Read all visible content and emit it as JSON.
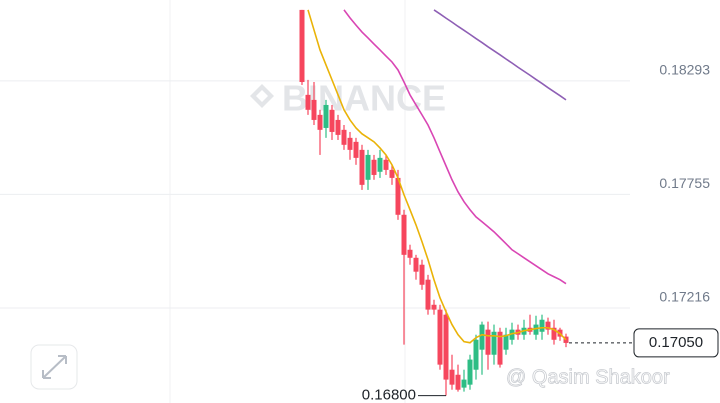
{
  "chart_data": {
    "type": "candlestick",
    "watermark": "BINANCE",
    "credit": "@ Qasim Shakoor",
    "ylim": [
      0.16765,
      0.18677
    ],
    "yticks": [
      0.18293,
      0.17755,
      0.17216
    ],
    "grid": true,
    "up_color": "#2ebd85",
    "down_color": "#f6465d",
    "open": [
      0.1863,
      0.18227,
      0.18203,
      0.18132,
      0.1807,
      0.18156,
      0.18108,
      0.18061,
      0.18023,
      0.18004,
      0.17966,
      0.17824,
      0.17919,
      0.17862,
      0.17919,
      0.17871,
      0.17833,
      0.17658,
      0.17492,
      0.17454,
      0.17421,
      0.1735,
      0.17231,
      0.17208,
      0.17184,
      0.16923,
      0.16899,
      0.16838,
      0.16852,
      0.16923,
      0.17018,
      0.17113,
      0.16994,
      0.17103,
      0.17018,
      0.17065,
      0.17113,
      0.17089,
      0.17122,
      0.17089,
      0.17103,
      0.17151,
      0.17122,
      0.17113,
      0.1708
    ],
    "high": [
      0.1863,
      0.18298,
      0.18288,
      0.18156,
      0.18203,
      0.18179,
      0.18132,
      0.18084,
      0.18051,
      0.18023,
      0.1799,
      0.17966,
      0.17942,
      0.17966,
      0.17942,
      0.17895,
      0.17871,
      0.17682,
      0.17516,
      0.17468,
      0.17445,
      0.17373,
      0.17255,
      0.17231,
      0.17208,
      0.16994,
      0.16947,
      0.16923,
      0.16994,
      0.17089,
      0.17151,
      0.17151,
      0.17137,
      0.17122,
      0.17122,
      0.17146,
      0.17137,
      0.1716,
      0.17184,
      0.17179,
      0.17184,
      0.1717,
      0.1716,
      0.17122,
      0.17094
    ],
    "low": [
      0.18274,
      0.18132,
      0.18084,
      0.17942,
      0.18023,
      0.18013,
      0.18013,
      0.17966,
      0.17919,
      0.17895,
      0.17776,
      0.17776,
      0.17824,
      0.17833,
      0.17847,
      0.178,
      0.17634,
      0.17042,
      0.17421,
      0.1735,
      0.17302,
      0.17184,
      0.17184,
      0.16923,
      0.168,
      0.16828,
      0.16819,
      0.16819,
      0.16828,
      0.16876,
      0.16899,
      0.16923,
      0.16947,
      0.16933,
      0.16994,
      0.17042,
      0.17065,
      0.17065,
      0.17089,
      0.17065,
      0.17065,
      0.17089,
      0.17042,
      0.1706,
      0.1703
    ],
    "close": [
      0.18288,
      0.18156,
      0.18108,
      0.18061,
      0.18179,
      0.18051,
      0.18037,
      0.1799,
      0.17966,
      0.17928,
      0.178,
      0.17942,
      0.17847,
      0.17928,
      0.17871,
      0.17833,
      0.17658,
      0.17468,
      0.17454,
      0.17388,
      0.17326,
      0.17208,
      0.17208,
      0.16947,
      0.16876,
      0.16852,
      0.16828,
      0.16876,
      0.16971,
      0.17065,
      0.17137,
      0.16994,
      0.17103,
      0.16947,
      0.17089,
      0.17113,
      0.17089,
      0.17122,
      0.17103,
      0.17137,
      0.1716,
      0.17113,
      0.17065,
      0.1708,
      0.1705
    ],
    "series": [
      {
        "color": "#eab308",
        "values": [
          null,
          0.1863,
          0.18535,
          0.1844,
          0.18369,
          0.18298,
          0.18227,
          0.18156,
          0.18108,
          0.1807,
          0.18042,
          0.18023,
          0.18004,
          0.17975,
          0.17942,
          0.17895,
          0.17833,
          0.17753,
          0.17682,
          0.1761,
          0.1753,
          0.17445,
          0.1735,
          0.17264,
          0.17198,
          0.17137,
          0.17089,
          0.17056,
          0.17051,
          0.17075,
          0.17089,
          0.17084,
          0.17084,
          0.1708,
          0.17084,
          0.17094,
          0.17099,
          0.17108,
          0.17113,
          0.17118,
          0.17122,
          0.17122,
          0.17113,
          0.17094,
          0.17065
        ]
      },
      {
        "color": "#d946b4",
        "values": [
          null,
          null,
          null,
          null,
          null,
          null,
          null,
          0.1863,
          0.18592,
          0.18558,
          0.18525,
          0.18497,
          0.18468,
          0.1844,
          0.18411,
          0.18383,
          0.18345,
          0.18288,
          0.18227,
          0.18179,
          0.18132,
          0.18084,
          0.18023,
          0.17956,
          0.1789,
          0.17824,
          0.17767,
          0.1772,
          0.17682,
          0.17648,
          0.17625,
          0.17601,
          0.17577,
          0.17549,
          0.17521,
          0.17492,
          0.17473,
          0.17454,
          0.17435,
          0.17416,
          0.17397,
          0.17378,
          0.17364,
          0.1735,
          0.17331
        ]
      },
      {
        "color": "#8e5fb5",
        "values": [
          null,
          null,
          null,
          null,
          null,
          null,
          null,
          null,
          null,
          null,
          null,
          null,
          null,
          null,
          null,
          null,
          null,
          null,
          null,
          null,
          null,
          null,
          0.1863,
          0.18611,
          0.18591,
          0.18572,
          0.18552,
          0.18533,
          0.18514,
          0.18494,
          0.18475,
          0.18455,
          0.18436,
          0.18417,
          0.18397,
          0.18378,
          0.18358,
          0.18339,
          0.1832,
          0.183,
          0.18281,
          0.18261,
          0.18242,
          0.18223,
          0.18203
        ]
      }
    ],
    "last_price": {
      "value": 0.1705,
      "label": "0.17050"
    },
    "low_marker": {
      "value": 0.168,
      "label": "0.16800"
    }
  }
}
